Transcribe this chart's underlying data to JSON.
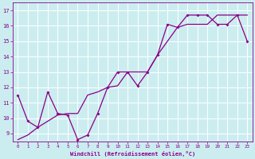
{
  "xlabel": "Windchill (Refroidissement éolien,°C)",
  "bg_color": "#ccedf0",
  "grid_color": "#b0dde0",
  "line_color": "#880088",
  "hours": [
    0,
    1,
    2,
    3,
    4,
    5,
    6,
    7,
    8,
    9,
    10,
    11,
    12,
    13,
    14,
    15,
    16,
    17,
    18,
    19,
    20,
    21,
    22,
    23
  ],
  "wiggly": [
    11.5,
    9.8,
    9.4,
    11.7,
    10.3,
    10.2,
    8.6,
    8.9,
    10.3,
    12.0,
    13.0,
    13.0,
    12.1,
    13.0,
    14.1,
    16.1,
    15.9,
    16.7,
    16.7,
    16.7,
    16.1,
    16.1,
    16.7,
    15.0
  ],
  "straight": [
    8.6,
    8.9,
    9.4,
    9.8,
    10.2,
    10.3,
    10.3,
    11.5,
    11.7,
    12.0,
    12.1,
    13.0,
    13.0,
    13.0,
    14.1,
    15.0,
    15.9,
    16.1,
    16.1,
    16.1,
    16.7,
    16.7,
    16.7,
    16.7
  ],
  "ylim": [
    8.5,
    17.5
  ],
  "yticks": [
    9,
    10,
    11,
    12,
    13,
    14,
    15,
    16,
    17
  ],
  "xlim": [
    -0.5,
    23.5
  ]
}
